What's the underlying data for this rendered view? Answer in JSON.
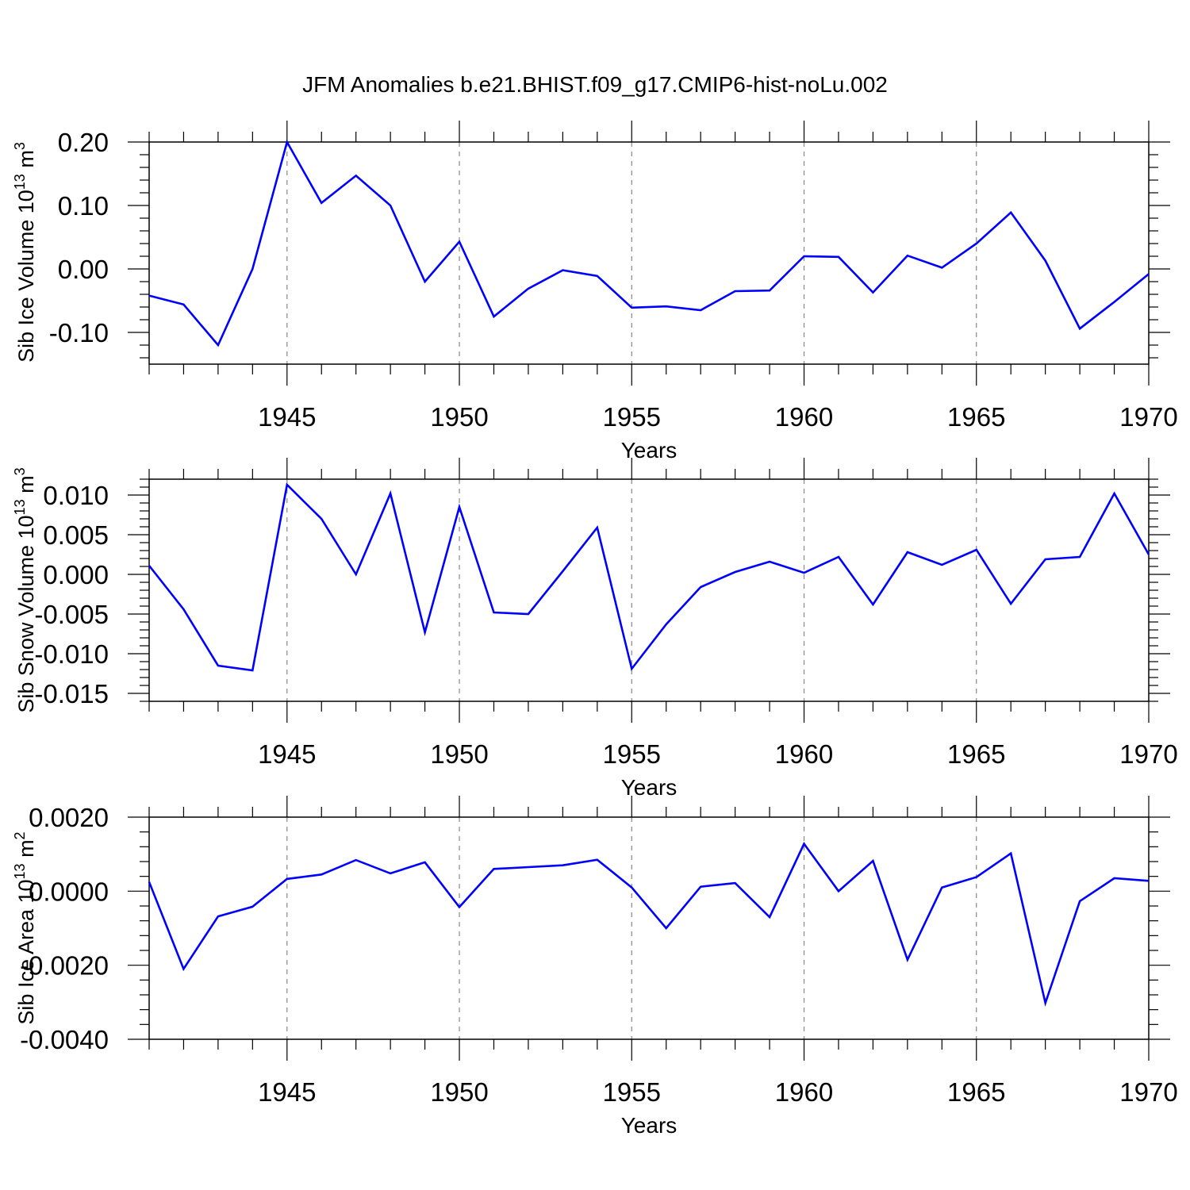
{
  "chart_data": {
    "type": "line",
    "title": "JFM Anomalies b.e21.BHIST.f09_g17.CMIP6-hist-noLu.002",
    "line_color": "#0000ff",
    "years": [
      1941,
      1942,
      1943,
      1944,
      1945,
      1946,
      1947,
      1948,
      1949,
      1950,
      1951,
      1952,
      1953,
      1954,
      1955,
      1956,
      1957,
      1958,
      1959,
      1960,
      1961,
      1962,
      1963,
      1964,
      1965,
      1966,
      1967,
      1968,
      1969,
      1970
    ],
    "xlim": [
      1941,
      1970
    ],
    "xticks": [
      1945,
      1950,
      1955,
      1960,
      1965,
      1970
    ],
    "panels": [
      {
        "ylabel_main": "Sib Ice Volume 10",
        "ylabel_exp": "13",
        "ylabel_unit": " m",
        "ylabel_unit_exp": "3",
        "xlabel": "Years",
        "ylim": [
          -0.15,
          0.2
        ],
        "yticks": [
          {
            "value": 0.2,
            "label": "0.20"
          },
          {
            "value": 0.1,
            "label": "0.10"
          },
          {
            "value": 0.0,
            "label": "0.00"
          },
          {
            "value": -0.1,
            "label": "-0.10"
          }
        ],
        "values": [
          -0.042,
          -0.056,
          -0.12,
          0.0,
          0.2,
          0.104,
          0.147,
          0.1,
          -0.02,
          0.043,
          -0.075,
          -0.031,
          -0.002,
          -0.011,
          -0.061,
          -0.059,
          -0.065,
          -0.035,
          -0.034,
          0.02,
          0.019,
          -0.037,
          0.021,
          0.002,
          0.04,
          0.089,
          0.013,
          -0.094,
          -0.052,
          -0.008
        ]
      },
      {
        "ylabel_main": "Sib Snow Volume 10",
        "ylabel_exp": "13",
        "ylabel_unit": " m",
        "ylabel_unit_exp": "3",
        "xlabel": "Years",
        "ylim": [
          -0.016,
          0.012
        ],
        "yticks": [
          {
            "value": 0.01,
            "label": "0.010"
          },
          {
            "value": 0.005,
            "label": "0.005"
          },
          {
            "value": 0.0,
            "label": "0.000"
          },
          {
            "value": -0.005,
            "label": "-0.005"
          },
          {
            "value": -0.01,
            "label": "-0.010"
          },
          {
            "value": -0.015,
            "label": "-0.015"
          }
        ],
        "values": [
          0.0011,
          -0.0044,
          -0.0115,
          -0.0121,
          0.0113,
          0.007,
          0.0,
          0.0102,
          -0.0073,
          0.0085,
          -0.0048,
          -0.005,
          0.0004,
          0.0059,
          -0.0119,
          -0.0063,
          -0.0016,
          0.0003,
          0.0016,
          0.0002,
          0.0022,
          -0.0038,
          0.0028,
          0.0012,
          0.0031,
          -0.0037,
          0.0019,
          0.0022,
          0.0102,
          0.0025
        ]
      },
      {
        "ylabel_main": "Sib Ice Area 10",
        "ylabel_exp": "13",
        "ylabel_unit": " m",
        "ylabel_unit_exp": "2",
        "xlabel": "Years",
        "ylim": [
          -0.004,
          0.002
        ],
        "yticks": [
          {
            "value": 0.002,
            "label": "0.0020"
          },
          {
            "value": 0.0,
            "label": "0.0000"
          },
          {
            "value": -0.002,
            "label": "-0.0020"
          },
          {
            "value": -0.004,
            "label": "-0.0040"
          }
        ],
        "values": [
          0.00025,
          -0.0021,
          -0.00068,
          -0.00042,
          0.00033,
          0.00045,
          0.00084,
          0.00048,
          0.00078,
          -0.00043,
          0.0006,
          0.00065,
          0.0007,
          0.00085,
          0.0001,
          -0.001,
          0.00012,
          0.00022,
          -0.0007,
          0.00128,
          0.0,
          0.00082,
          -0.00185,
          0.0001,
          0.00038,
          0.00102,
          -0.00302,
          -0.00027,
          0.00035,
          0.00028
        ]
      }
    ]
  }
}
